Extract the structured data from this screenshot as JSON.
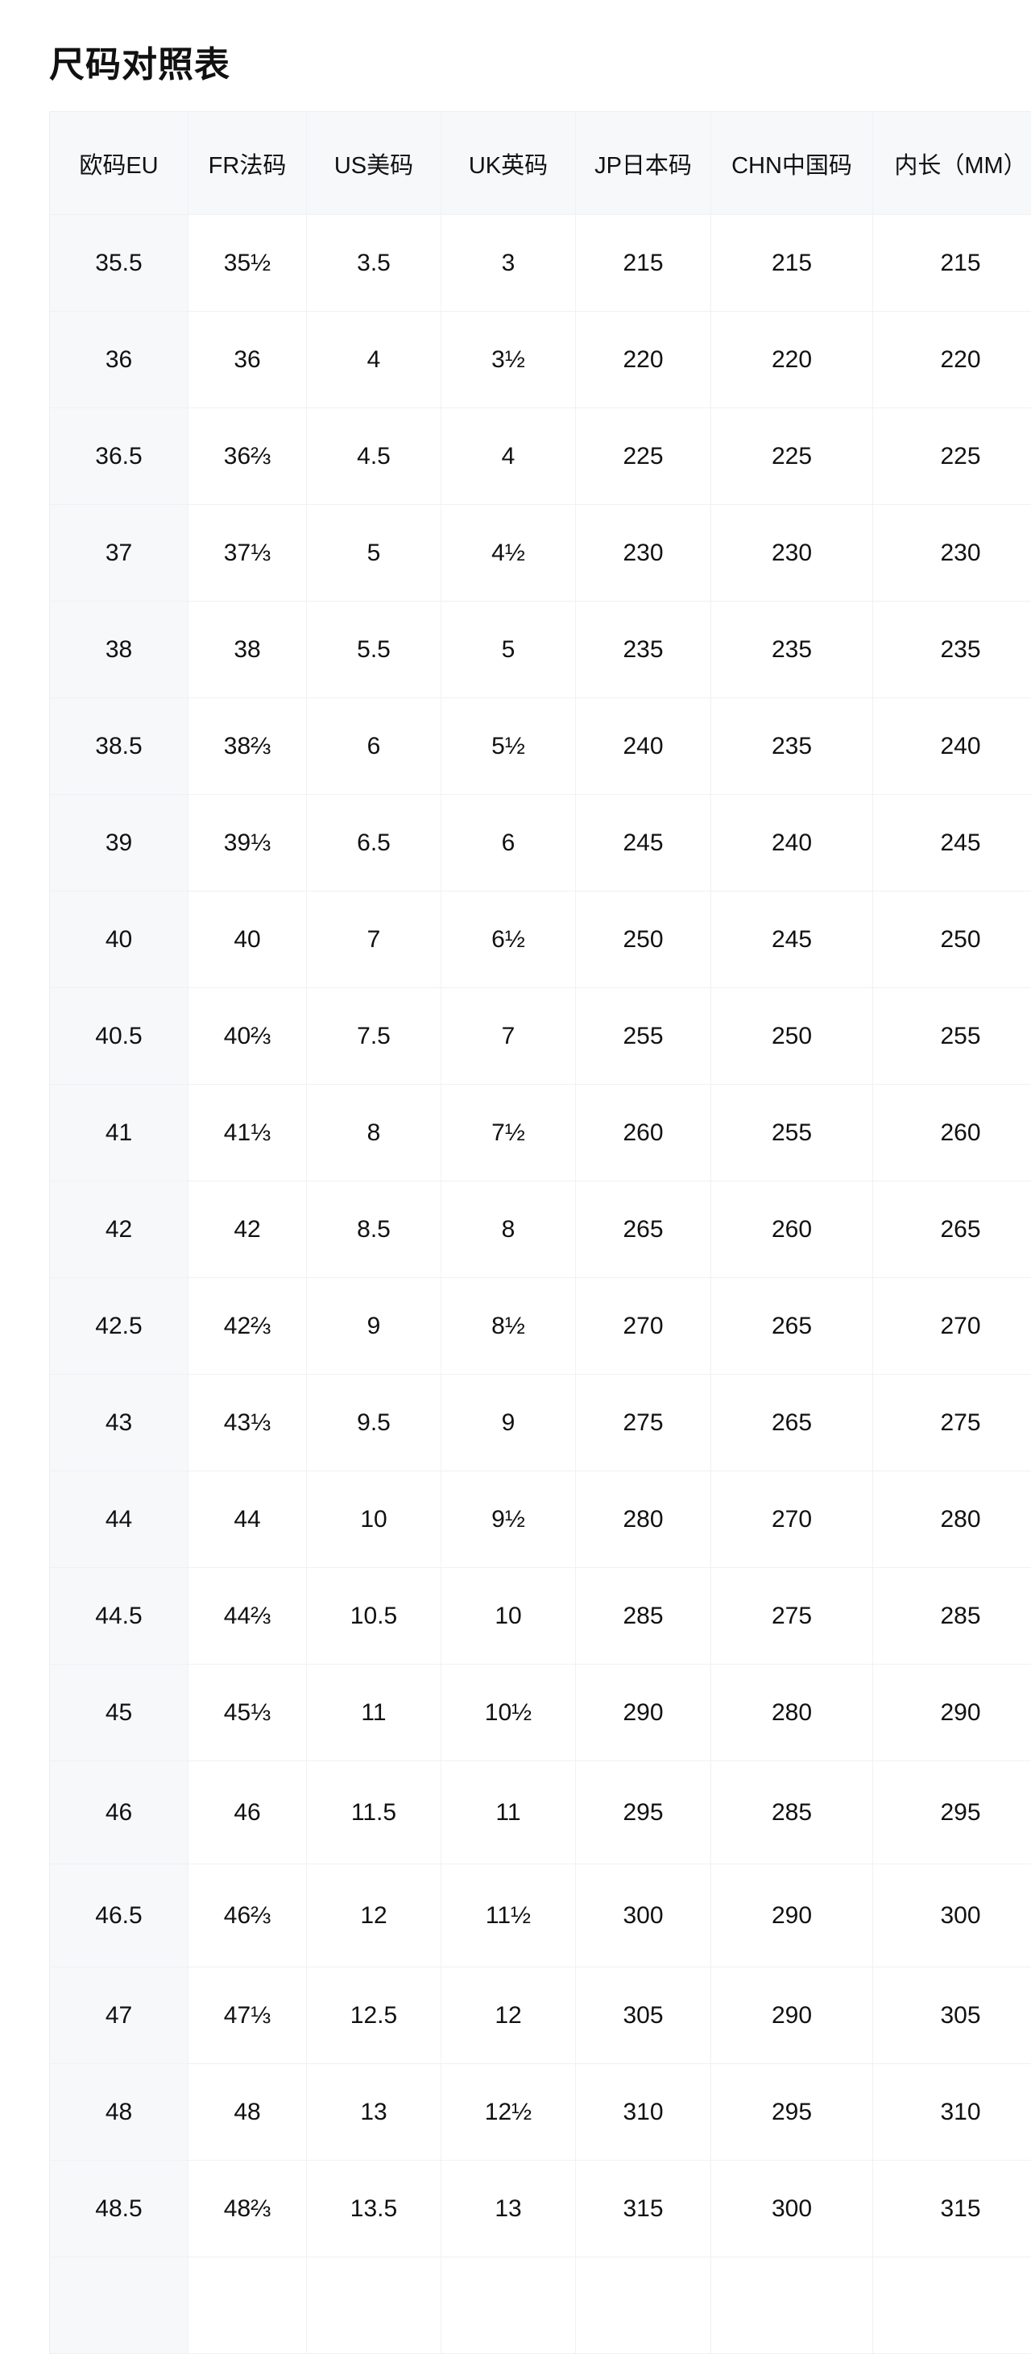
{
  "title": "尺码对照表",
  "table": {
    "headers": [
      "欧码EU",
      "FR法码",
      "US美码",
      "UK英码",
      "JP日本码",
      "CHN中国码",
      "内长（MM）"
    ],
    "rows": [
      [
        "35.5",
        "35½",
        "3.5",
        "3",
        "215",
        "215",
        "215"
      ],
      [
        "36",
        "36",
        "4",
        "3½",
        "220",
        "220",
        "220"
      ],
      [
        "36.5",
        "36⅔",
        "4.5",
        "4",
        "225",
        "225",
        "225"
      ],
      [
        "37",
        "37⅓",
        "5",
        "4½",
        "230",
        "230",
        "230"
      ],
      [
        "38",
        "38",
        "5.5",
        "5",
        "235",
        "235",
        "235"
      ],
      [
        "38.5",
        "38⅔",
        "6",
        "5½",
        "240",
        "235",
        "240"
      ],
      [
        "39",
        "39⅓",
        "6.5",
        "6",
        "245",
        "240",
        "245"
      ],
      [
        "40",
        "40",
        "7",
        "6½",
        "250",
        "245",
        "250"
      ],
      [
        "40.5",
        "40⅔",
        "7.5",
        "7",
        "255",
        "250",
        "255"
      ],
      [
        "41",
        "41⅓",
        "8",
        "7½",
        "260",
        "255",
        "260"
      ],
      [
        "42",
        "42",
        "8.5",
        "8",
        "265",
        "260",
        "265"
      ],
      [
        "42.5",
        "42⅔",
        "9",
        "8½",
        "270",
        "265",
        "270"
      ],
      [
        "43",
        "43⅓",
        "9.5",
        "9",
        "275",
        "265",
        "275"
      ],
      [
        "44",
        "44",
        "10",
        "9½",
        "280",
        "270",
        "280"
      ],
      [
        "44.5",
        "44⅔",
        "10.5",
        "10",
        "285",
        "275",
        "285"
      ],
      [
        "45",
        "45⅓",
        "11",
        "10½",
        "290",
        "280",
        "290"
      ],
      [
        "46",
        "46",
        "11.5",
        "11",
        "295",
        "285",
        "295"
      ],
      [
        "46.5",
        "46⅔",
        "12",
        "11½",
        "300",
        "290",
        "300"
      ],
      [
        "47",
        "47⅓",
        "12.5",
        "12",
        "305",
        "290",
        "305"
      ],
      [
        "48",
        "48",
        "13",
        "12½",
        "310",
        "295",
        "310"
      ],
      [
        "48.5",
        "48⅔",
        "13.5",
        "13",
        "315",
        "300",
        "315"
      ]
    ]
  }
}
